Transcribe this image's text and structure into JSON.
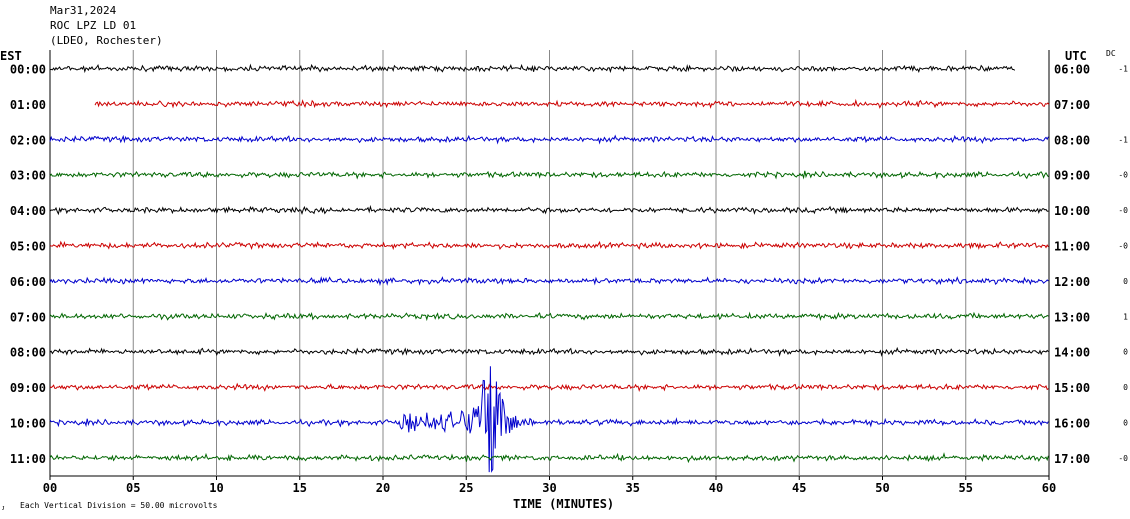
{
  "header": {
    "date": "Mar31,2024",
    "station": "ROC LPZ LD 01",
    "network": "(LDEO, Rochester)"
  },
  "left_axis_title": "EST",
  "right_axis_title": "UTC",
  "dc_title": "DC",
  "footer": {
    "division_note": "Each Vertical Division =   50.00 microvolts",
    "scale_symbol": "ᴊ"
  },
  "colors": {
    "black": "#000000",
    "red": "#cc0000",
    "blue": "#0000cc",
    "green": "#006600",
    "grid": "#888888"
  },
  "chart_data": {
    "type": "line",
    "title": "Mar31,2024 ROC LPZ LD 01 (LDEO, Rochester)",
    "xlabel": "TIME (MINUTES)",
    "xlim": [
      0,
      60
    ],
    "x_ticks": [
      "00",
      "05",
      "10",
      "15",
      "20",
      "25",
      "30",
      "35",
      "40",
      "45",
      "50",
      "55",
      "60"
    ],
    "grid": true,
    "rows": [
      {
        "est": "00:00",
        "utc": "06:00",
        "dc": "-1",
        "color": "black",
        "start_min": 0.0,
        "end_min": 58.0
      },
      {
        "est": "01:00",
        "utc": "07:00",
        "dc": "",
        "color": "red",
        "start_min": 2.7,
        "end_min": 60.0
      },
      {
        "est": "02:00",
        "utc": "08:00",
        "dc": "-1",
        "color": "blue",
        "start_min": 0.0,
        "end_min": 60.0
      },
      {
        "est": "03:00",
        "utc": "09:00",
        "dc": "-0",
        "color": "green",
        "start_min": 0.0,
        "end_min": 60.0
      },
      {
        "est": "04:00",
        "utc": "10:00",
        "dc": "-0",
        "color": "black",
        "start_min": 0.0,
        "end_min": 60.0
      },
      {
        "est": "05:00",
        "utc": "11:00",
        "dc": "-0",
        "color": "red",
        "start_min": 0.0,
        "end_min": 60.0
      },
      {
        "est": "06:00",
        "utc": "12:00",
        "dc": "0",
        "color": "blue",
        "start_min": 0.0,
        "end_min": 60.0
      },
      {
        "est": "07:00",
        "utc": "13:00",
        "dc": "1",
        "color": "green",
        "start_min": 0.0,
        "end_min": 60.0
      },
      {
        "est": "08:00",
        "utc": "14:00",
        "dc": "0",
        "color": "black",
        "start_min": 0.0,
        "end_min": 60.0
      },
      {
        "est": "09:00",
        "utc": "15:00",
        "dc": "0",
        "color": "red",
        "start_min": 0.0,
        "end_min": 60.0
      },
      {
        "est": "10:00",
        "utc": "16:00",
        "dc": "0",
        "color": "blue",
        "start_min": 0.0,
        "end_min": 60.0
      },
      {
        "est": "11:00",
        "utc": "17:00",
        "dc": "-0",
        "color": "green",
        "start_min": 0.0,
        "end_min": 60.0
      }
    ],
    "events": [
      {
        "row": "10:00",
        "start_min": 20.5,
        "peak_min": 26.4,
        "end_min": 29.0
      }
    ]
  }
}
